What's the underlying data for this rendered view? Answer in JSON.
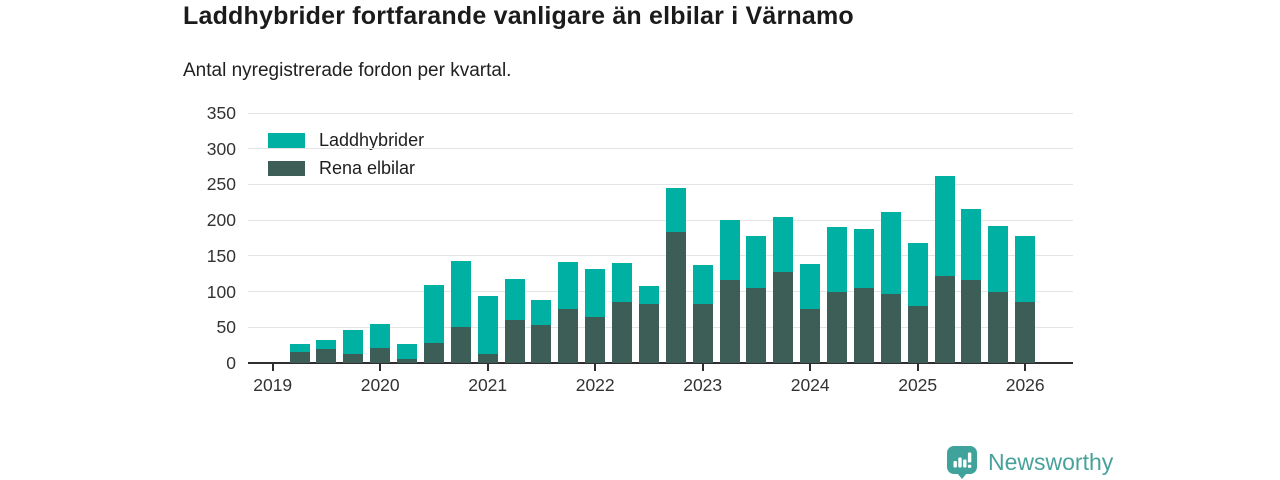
{
  "header": {
    "title": "Laddhybrider fortfarande vanligare än elbilar i Värnamo",
    "subtitle": "Antal nyregistrerade fordon per kvartal."
  },
  "chart_data": {
    "type": "bar",
    "stacked": true,
    "title": "Laddhybrider fortfarande vanligare än elbilar i Värnamo",
    "subtitle": "Antal nyregistrerade fordon per kvartal.",
    "categories": [
      "2019 Q2",
      "2019 Q3",
      "2019 Q4",
      "2020 Q1",
      "2020 Q2",
      "2020 Q3",
      "2020 Q4",
      "2021 Q1",
      "2021 Q2",
      "2021 Q3",
      "2021 Q4",
      "2022 Q1",
      "2022 Q2",
      "2022 Q3",
      "2022 Q4",
      "2023 Q1",
      "2023 Q2",
      "2023 Q3",
      "2023 Q4",
      "2024 Q1",
      "2024 Q2",
      "2024 Q3",
      "2024 Q4",
      "2025 Q1",
      "2025 Q2",
      "2025 Q3",
      "2025 Q4",
      "2026 Q1"
    ],
    "series": [
      {
        "name": "Laddhybrider",
        "color": "#00b0a3",
        "values": [
          12,
          12,
          33,
          34,
          21,
          81,
          92,
          81,
          58,
          35,
          67,
          67,
          55,
          26,
          62,
          54,
          84,
          73,
          78,
          63,
          90,
          82,
          115,
          88,
          140,
          100,
          92,
          93
        ]
      },
      {
        "name": "Rena elbilar",
        "color": "#3c5e57",
        "values": [
          15,
          20,
          13,
          21,
          6,
          28,
          51,
          13,
          60,
          53,
          75,
          64,
          85,
          82,
          183,
          83,
          116,
          105,
          127,
          76,
          100,
          105,
          96,
          80,
          122,
          116,
          100,
          85
        ]
      }
    ],
    "ylim": [
      0,
      350
    ],
    "yticks": [
      0,
      50,
      100,
      150,
      200,
      250,
      300,
      350
    ],
    "xticks": [
      "2019",
      "2020",
      "2021",
      "2022",
      "2023",
      "2024",
      "2025",
      "2026"
    ],
    "x_offset_quarters": 1,
    "grid": true,
    "legend_position": "top-left",
    "axis_color": "#2e2e2e",
    "grid_color": "#e4e4e4"
  },
  "footer": {
    "brand": "Newsworthy",
    "brand_color": "#48a29b",
    "brand_icon": "newsworthy-bars-bubble-icon",
    "icon_color": "#3fa39c"
  }
}
